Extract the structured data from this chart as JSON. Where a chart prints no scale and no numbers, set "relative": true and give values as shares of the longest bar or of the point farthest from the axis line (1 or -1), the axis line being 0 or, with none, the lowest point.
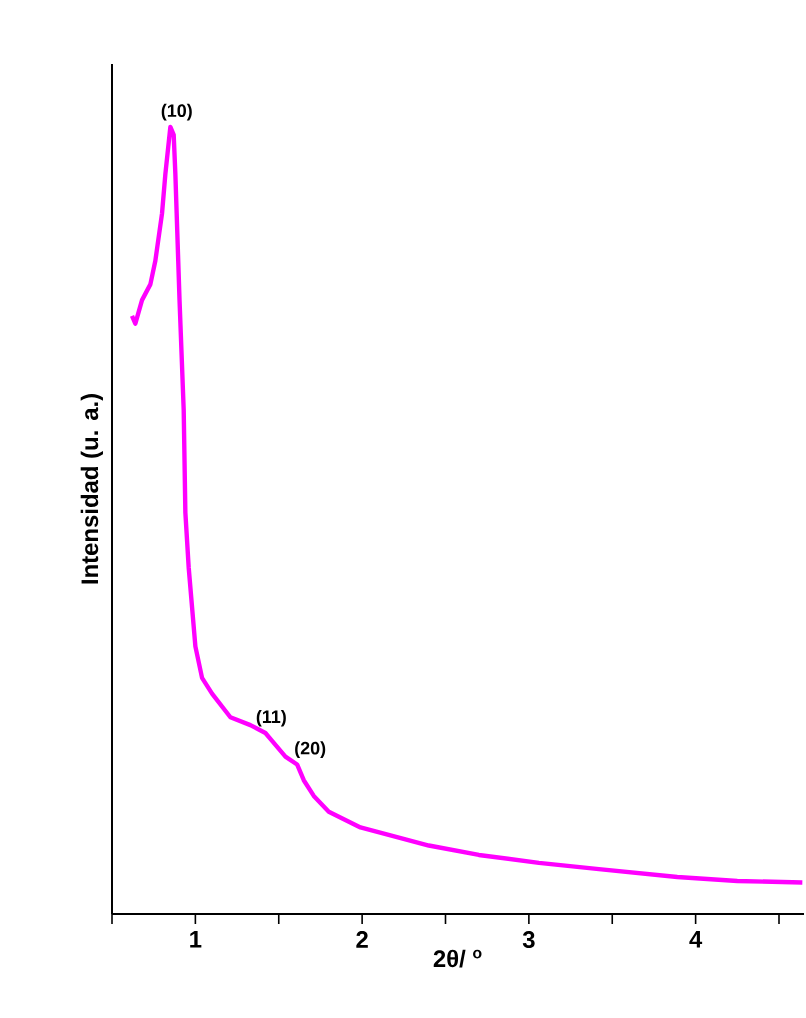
{
  "chart_data": {
    "type": "line",
    "relative": true,
    "xlabel": "2θ/ $^{o}$",
    "ylabel": "Intensidad (u. a.)",
    "xlim": [
      0.5,
      4.65
    ],
    "xticks": [
      {
        "value": 0.5,
        "label": null
      },
      1,
      {
        "value": 1.5,
        "label": null
      },
      2,
      {
        "value": 2.5,
        "label": null
      },
      3,
      {
        "value": 3.5,
        "label": null
      },
      4,
      {
        "value": 4.5,
        "label": null
      }
    ],
    "x": [
      0.62,
      0.64,
      0.68,
      0.73,
      0.76,
      0.8,
      0.82,
      0.85,
      0.87,
      0.88,
      0.905,
      0.93,
      0.94,
      0.96,
      1.0,
      1.04,
      1.1,
      1.21,
      1.33,
      1.42,
      1.46,
      1.54,
      1.61,
      1.65,
      1.71,
      1.8,
      1.99,
      2.17,
      2.4,
      2.7,
      3.06,
      3.42,
      3.89,
      4.25,
      4.64
    ],
    "series": [
      {
        "color": "#ff00ff",
        "values": [
          0.76,
          0.75,
          0.78,
          0.8,
          0.83,
          0.89,
          0.94,
          1.0,
          0.99,
          0.94,
          0.78,
          0.64,
          0.51,
          0.44,
          0.34,
          0.3,
          0.28,
          0.25,
          0.24,
          0.23,
          0.22,
          0.2,
          0.19,
          0.17,
          0.15,
          0.13,
          0.11,
          0.1,
          0.087,
          0.075,
          0.065,
          0.057,
          0.047,
          0.042,
          0.04
        ]
      }
    ],
    "annotations": [
      {
        "text": "(10)",
        "x": 0.85,
        "y": 1.0
      },
      {
        "text": "(11)",
        "x": 1.42,
        "y": 0.23
      },
      {
        "text": "(20)",
        "x": 1.65,
        "y": 0.19
      }
    ],
    "grid": false,
    "marker": "none",
    "line_style": "solid"
  }
}
